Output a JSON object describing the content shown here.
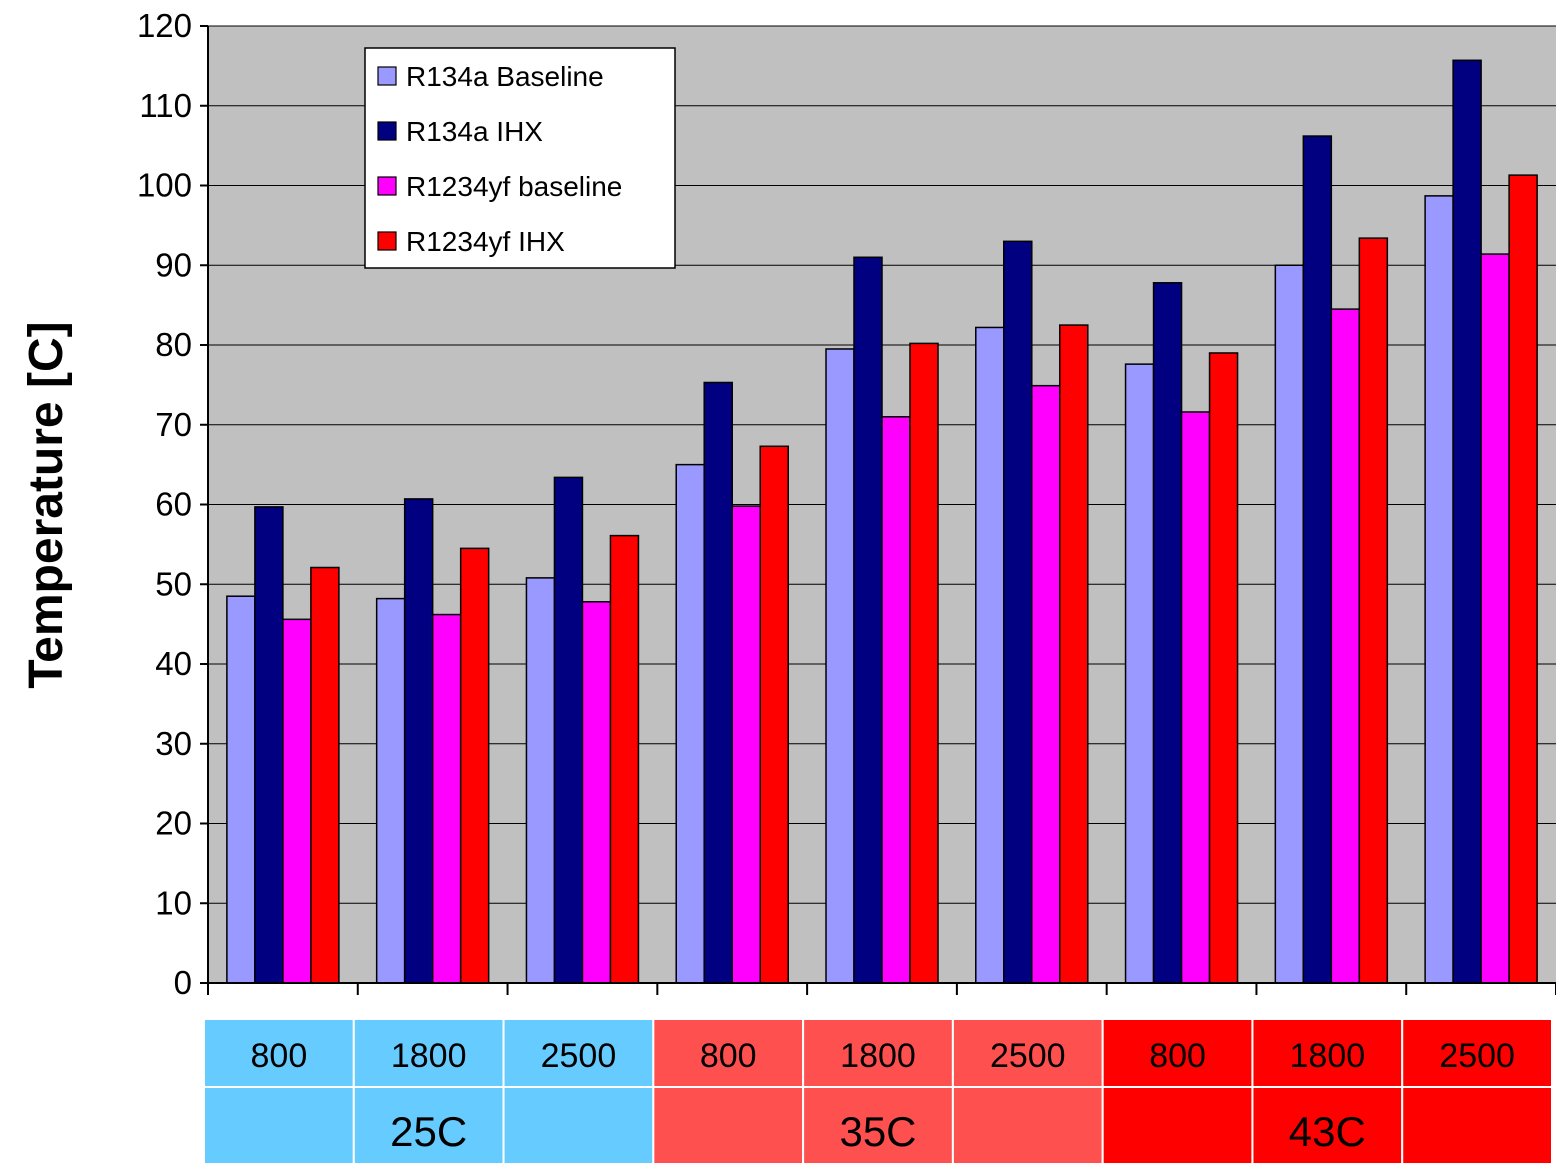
{
  "chart_data": {
    "type": "bar",
    "title": "",
    "ylabel": "Temperature [C]",
    "ylim": [
      0,
      120
    ],
    "yticks": [
      0,
      10,
      20,
      30,
      40,
      50,
      60,
      70,
      80,
      90,
      100,
      110,
      120
    ],
    "grid": true,
    "legend_position": "top-left",
    "categories": [
      "800",
      "1800",
      "2500",
      "800",
      "1800",
      "2500",
      "800",
      "1800",
      "2500"
    ],
    "groups": [
      {
        "label": "25C",
        "color": "#66CCFF"
      },
      {
        "label": "35C",
        "color": "#FF5050"
      },
      {
        "label": "43C",
        "color": "#FF0000"
      }
    ],
    "series": [
      {
        "name": "R134a Baseline",
        "color": "#9999FF",
        "values": [
          48.5,
          48.2,
          50.8,
          65.0,
          79.5,
          82.2,
          77.6,
          90.0,
          98.7
        ]
      },
      {
        "name": "R134a IHX",
        "color": "#000080",
        "values": [
          59.7,
          60.7,
          63.4,
          75.3,
          91.0,
          93.0,
          87.8,
          106.2,
          115.7
        ]
      },
      {
        "name": "R1234yf baseline",
        "color": "#FF00FF",
        "values": [
          45.6,
          46.2,
          47.8,
          59.8,
          71.0,
          74.9,
          71.6,
          84.5,
          91.4
        ]
      },
      {
        "name": "R1234yf IHX",
        "color": "#FF0000",
        "values": [
          52.1,
          54.5,
          56.1,
          67.3,
          80.2,
          82.5,
          79.0,
          93.4,
          101.3
        ]
      }
    ]
  }
}
